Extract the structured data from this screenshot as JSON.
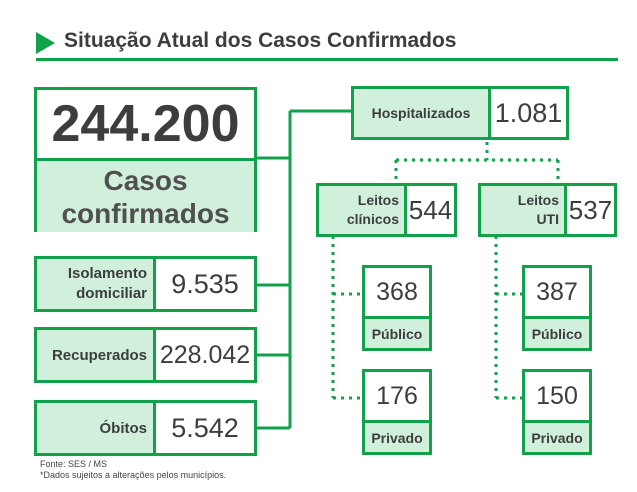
{
  "header": {
    "title": "Situação Atual dos Casos Confirmados"
  },
  "total": {
    "value": "244.200",
    "label_line1": "Casos",
    "label_line2": "confirmados"
  },
  "isolamento": {
    "label_line1": "Isolamento",
    "label_line2": "domiciliar",
    "value": "9.535"
  },
  "recuperados": {
    "label": "Recuperados",
    "value": "228.042"
  },
  "obitos": {
    "label": "Óbitos",
    "value": "5.542"
  },
  "hospitalizados": {
    "label": "Hospitalizados",
    "value": "1.081"
  },
  "leitos_clinicos": {
    "label_line1": "Leitos",
    "label_line2": "clínicos",
    "value": "544",
    "publico": {
      "value": "368",
      "label": "Público"
    },
    "privado": {
      "value": "176",
      "label": "Privado"
    }
  },
  "leitos_uti": {
    "label_line1": "Leitos",
    "label_line2": "UTI",
    "value": "537",
    "publico": {
      "value": "387",
      "label": "Público"
    },
    "privado": {
      "value": "150",
      "label": "Privado"
    }
  },
  "footer": {
    "source": "Fonte: SES / MS",
    "note": "*Dados sujeitos a alterações pelos municípios."
  },
  "colors": {
    "green": "#12a14b",
    "light_green": "#d1f0dc",
    "text": "#3d3d3d"
  }
}
